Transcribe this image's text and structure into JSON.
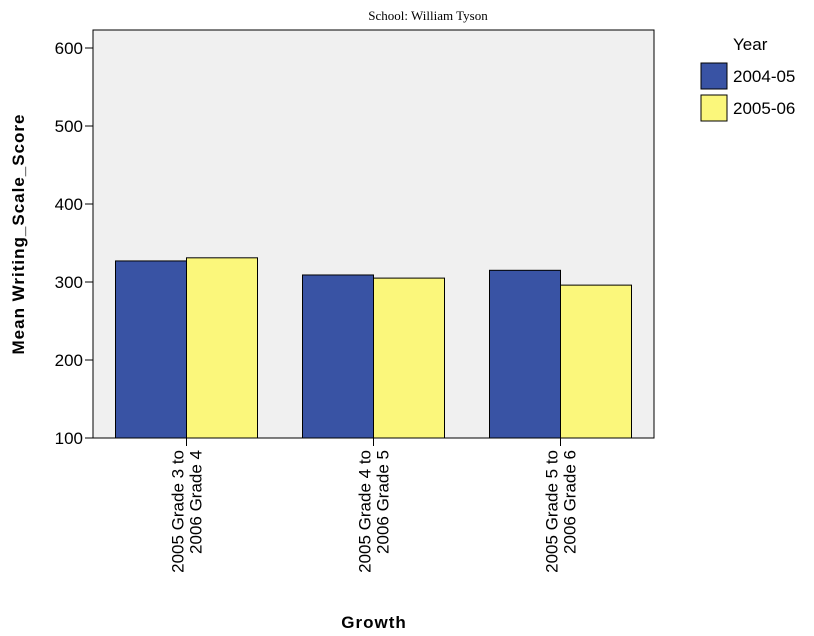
{
  "chart_data": {
    "type": "bar",
    "title": "School: William Tyson",
    "xlabel": "Growth",
    "ylabel": "Mean Writing_Scale_Score",
    "ylim": [
      100,
      600
    ],
    "yticks": [
      100,
      200,
      300,
      400,
      500,
      600
    ],
    "categories": [
      [
        "2005 Grade 3 to",
        "2006 Grade 4"
      ],
      [
        "2005 Grade 4 to",
        "2006 Grade 5"
      ],
      [
        "2005 Grade 5 to",
        "2006 Grade 6"
      ]
    ],
    "series": [
      {
        "name": "2004-05",
        "color": "#3953a4",
        "values": [
          327,
          309,
          315
        ]
      },
      {
        "name": "2005-06",
        "color": "#fbf77b",
        "values": [
          331,
          305,
          296
        ]
      }
    ],
    "legend": {
      "title": "Year",
      "position": "right"
    },
    "plot_background": "#f0f0f0",
    "grid": false
  }
}
